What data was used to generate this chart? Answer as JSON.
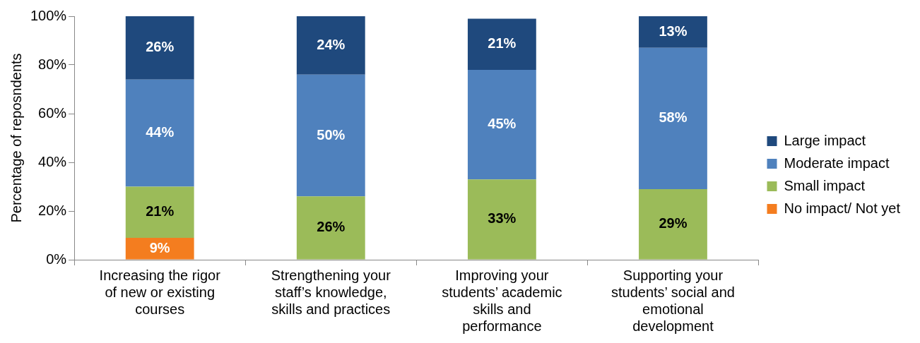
{
  "chart_data": {
    "type": "bar",
    "stacked": true,
    "ylabel": "Percentage of reposndents",
    "categories": [
      "Increasing the rigor of new or existing courses",
      "Strengthening your staff’s knowledge, skills and practices",
      "Improving your students’ academic skills and performance",
      "Supporting your students’ social and emotional development"
    ],
    "series": [
      {
        "name": "No impact/ Not yet",
        "color": "#f47d1f",
        "values": [
          9,
          null,
          null,
          null
        ],
        "value_labels": [
          "9%",
          null,
          null,
          null
        ]
      },
      {
        "name": "Small impact",
        "color": "#9bbb59",
        "values": [
          21,
          26,
          33,
          29
        ],
        "value_labels": [
          "21%",
          "26%",
          "33%",
          "29%"
        ]
      },
      {
        "name": "Moderate impact",
        "color": "#4f81bd",
        "values": [
          44,
          50,
          45,
          58
        ],
        "value_labels": [
          "44%",
          "50%",
          "45%",
          "58%"
        ]
      },
      {
        "name": "Large impact",
        "color": "#1f497d",
        "values": [
          26,
          24,
          21,
          13
        ],
        "value_labels": [
          "26%",
          "24%",
          "21%",
          "13%"
        ]
      }
    ],
    "ylim": [
      0,
      100
    ],
    "yticks": [
      {
        "value": 0,
        "label": "0%"
      },
      {
        "value": 20,
        "label": "20%"
      },
      {
        "value": 40,
        "label": "40%"
      },
      {
        "value": 60,
        "label": "60%"
      },
      {
        "value": 80,
        "label": "80%"
      },
      {
        "value": 100,
        "label": "100%"
      }
    ],
    "grid": false,
    "legend": "right"
  }
}
